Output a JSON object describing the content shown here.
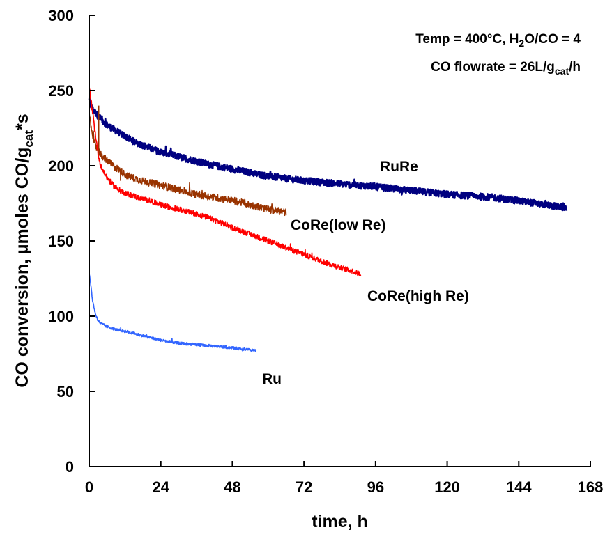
{
  "chart_data": {
    "type": "line",
    "xlabel": "time, h",
    "ylabel": {
      "main": "CO conversion, µmoles CO/g",
      "sub": "cat",
      "tail": "*s"
    },
    "xlim": [
      0,
      168
    ],
    "ylim": [
      0,
      300
    ],
    "x_ticks": [
      0,
      24,
      48,
      72,
      96,
      120,
      144,
      168
    ],
    "y_ticks": [
      0,
      50,
      100,
      150,
      200,
      250,
      300
    ],
    "grid": false,
    "annotations": [
      {
        "parts": [
          {
            "text": "Temp = 400°C, H"
          },
          {
            "text": "2",
            "sub": true
          },
          {
            "text": "O/CO = 4"
          }
        ]
      },
      {
        "parts": [
          {
            "text": "CO flowrate = 26L/g"
          },
          {
            "text": "cat",
            "sub": true
          },
          {
            "text": "/h"
          }
        ]
      }
    ],
    "series": [
      {
        "name": "RuRe",
        "color": "#000080",
        "noise": 2.2,
        "x": [
          0,
          1,
          3,
          6,
          10,
          15,
          20,
          24,
          30,
          40,
          50,
          60,
          72,
          84,
          96,
          110,
          120,
          135,
          150,
          160
        ],
        "y": [
          243,
          238,
          233,
          227,
          222,
          216,
          212,
          209,
          206,
          201,
          197,
          193,
          190,
          188,
          186,
          183,
          181,
          179,
          175,
          172
        ]
      },
      {
        "name": "CoRe(low Re)",
        "color": "#993300",
        "noise": 2.4,
        "x": [
          0,
          1,
          2,
          3,
          5,
          8,
          11,
          12,
          16,
          20,
          24,
          30,
          36,
          42,
          48,
          54,
          60,
          66
        ],
        "y": [
          233,
          222,
          214,
          210,
          205,
          200,
          196,
          194,
          191,
          189,
          187,
          184,
          181,
          179,
          177,
          174,
          171,
          169
        ],
        "spikes": [
          {
            "x": 3.2,
            "y": 240
          },
          {
            "x": 10.5,
            "y": 190
          }
        ]
      },
      {
        "name": "CoRe(high Re)",
        "color": "#ff0000",
        "noise": 1.8,
        "x": [
          0,
          1,
          2,
          3,
          4,
          6,
          8,
          10,
          12,
          16,
          20,
          24,
          30,
          36,
          42,
          48,
          56,
          64,
          72,
          80,
          88,
          91
        ],
        "y": [
          252,
          238,
          222,
          208,
          199,
          192,
          187,
          184,
          182,
          179,
          177,
          174,
          171,
          168,
          164,
          159,
          153,
          147,
          141,
          135,
          130,
          128
        ]
      },
      {
        "name": "Ru",
        "color": "#3366ff",
        "noise": 0.9,
        "x": [
          0,
          0.5,
          1,
          2,
          3,
          4,
          6,
          9,
          12,
          16,
          20,
          24,
          30,
          36,
          42,
          48,
          52,
          56
        ],
        "y": [
          128,
          122,
          112,
          102,
          97,
          95,
          93,
          91,
          90,
          88,
          86,
          84,
          82,
          81,
          80,
          79,
          78,
          77
        ]
      }
    ]
  }
}
